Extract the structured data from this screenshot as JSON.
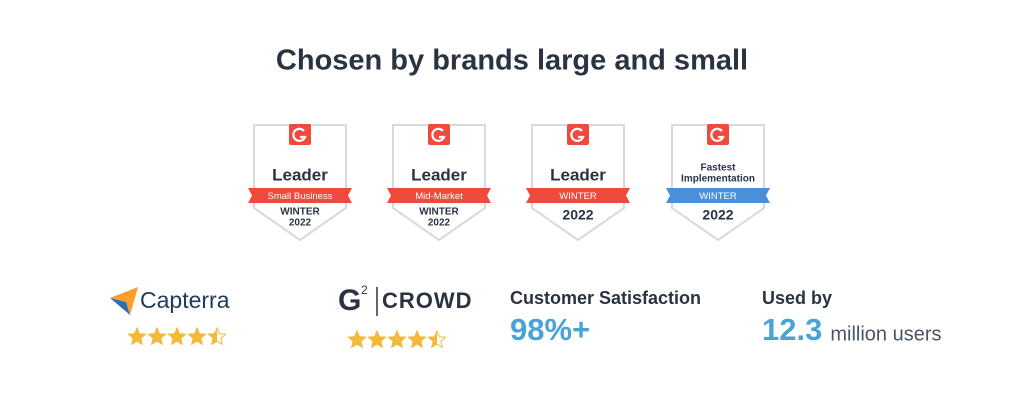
{
  "title": "Chosen by brands large and small",
  "badges": [
    {
      "heading": "Leader",
      "ribbon": "Small Business",
      "ribbon_color": "#ef4a3b",
      "season": "WINTER",
      "year": "2022"
    },
    {
      "heading": "Leader",
      "ribbon": "Mid-Market",
      "ribbon_color": "#ef4a3b",
      "season": "WINTER",
      "year": "2022"
    },
    {
      "heading": "Leader",
      "ribbon": "WINTER",
      "ribbon_color": "#ef4a3b",
      "year": "2022"
    },
    {
      "heading_lines": [
        "Fastest",
        "Implementation"
      ],
      "ribbon": "WINTER",
      "ribbon_color": "#4a8fd8",
      "year": "2022"
    }
  ],
  "review_sites": [
    {
      "name": "Capterra",
      "rating": 4.5
    },
    {
      "mark": "G",
      "sup": "2",
      "name": "CROWD",
      "rating": 4.5
    }
  ],
  "stats": [
    {
      "label": "Customer Satisfaction",
      "value": "98%+"
    },
    {
      "label": "Used by",
      "value": "12.3",
      "unit": "million users"
    }
  ]
}
